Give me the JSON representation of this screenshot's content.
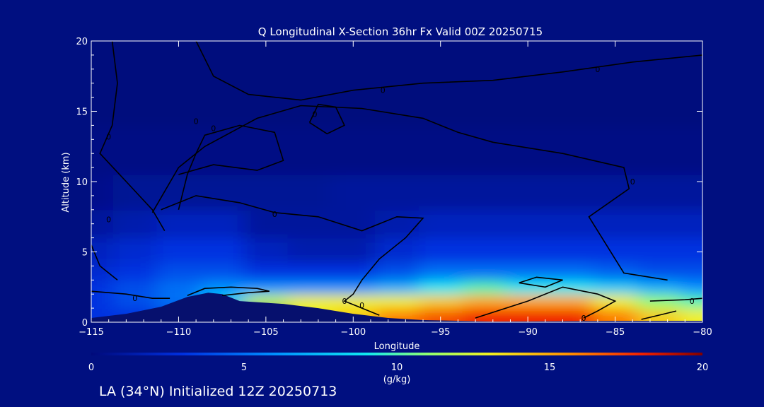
{
  "chart_data": {
    "type": "heatmap",
    "title": "Q Longitudinal X-Section 36hr  Fx Valid 00Z 20250715",
    "xlabel": "Longitude",
    "ylabel": "Altitude (km)",
    "xlim": [
      -115,
      -80
    ],
    "ylim": [
      0,
      20
    ],
    "x_ticks": [
      "−115",
      "−110",
      "−105",
      "−100",
      "−95",
      "−90",
      "−85",
      "−80"
    ],
    "x_tick_values": [
      -115,
      -110,
      -105,
      -100,
      -95,
      -90,
      -85,
      -80
    ],
    "y_ticks": [
      "0",
      "5",
      "10",
      "15",
      "20"
    ],
    "y_tick_values": [
      0,
      5,
      10,
      15,
      20
    ],
    "colorbar": {
      "label": "(g/kg)",
      "range": [
        0,
        20
      ],
      "ticks": [
        "0",
        "5",
        "10",
        "15",
        "20"
      ],
      "tick_values": [
        0,
        5,
        10,
        15,
        20
      ]
    },
    "moisture_field": {
      "description_units": "g/kg",
      "longitudes": [
        -115,
        -112.5,
        -110,
        -107.5,
        -105,
        -102.5,
        -100,
        -97.5,
        -95,
        -92.5,
        -90,
        -87.5,
        -85,
        -82.5,
        -80
      ],
      "altitudes": [
        0.5,
        1.5,
        2.5,
        3.5,
        5,
        7,
        9,
        12,
        16
      ],
      "values": [
        [
          3,
          3,
          4,
          0,
          0,
          13,
          14,
          16,
          17,
          18,
          18,
          18,
          16,
          14,
          13
        ],
        [
          3,
          4,
          5,
          8,
          12,
          13,
          13,
          13,
          14,
          15,
          15,
          15,
          13,
          11,
          10
        ],
        [
          3,
          4,
          5,
          6,
          6,
          6,
          6,
          7,
          9,
          10,
          9,
          9,
          8,
          7,
          6
        ],
        [
          2.5,
          3,
          4,
          4,
          3,
          3,
          3,
          4,
          5,
          5,
          5,
          5,
          4.5,
          4,
          4
        ],
        [
          2,
          2.5,
          3,
          3,
          2,
          1.5,
          1.5,
          2.5,
          3,
          3,
          3,
          3,
          3,
          3,
          3
        ],
        [
          1,
          1.5,
          2,
          2,
          1,
          1,
          1,
          1.5,
          2,
          2,
          2,
          2,
          2,
          2,
          2
        ],
        [
          0.5,
          0.8,
          0.8,
          0.8,
          0.8,
          0.8,
          1,
          1,
          1,
          1,
          1,
          1,
          1,
          1,
          1
        ],
        [
          0.3,
          0.3,
          0.3,
          0.3,
          0.3,
          0.3,
          0.3,
          0.3,
          0.3,
          0.3,
          0.3,
          0.3,
          0.3,
          0.3,
          0.3
        ],
        [
          0.1,
          0.1,
          0.1,
          0.1,
          0.1,
          0.1,
          0.1,
          0.1,
          0.1,
          0.1,
          0.1,
          0.1,
          0.1,
          0.1,
          0.1
        ]
      ]
    },
    "terrain": [
      {
        "lon": -115,
        "alt": 0.3
      },
      {
        "lon": -113,
        "alt": 0.6
      },
      {
        "lon": -111,
        "alt": 1.1
      },
      {
        "lon": -109.5,
        "alt": 1.8
      },
      {
        "lon": -108.3,
        "alt": 2.1
      },
      {
        "lon": -107.5,
        "alt": 2.0
      },
      {
        "lon": -106.5,
        "alt": 1.5
      },
      {
        "lon": -104,
        "alt": 1.3
      },
      {
        "lon": -102,
        "alt": 1.0
      },
      {
        "lon": -100,
        "alt": 0.6
      },
      {
        "lon": -98,
        "alt": 0.3
      },
      {
        "lon": -96,
        "alt": 0.15
      },
      {
        "lon": -92,
        "alt": 0.05
      },
      {
        "lon": -85,
        "alt": 0.1
      },
      {
        "lon": -80,
        "alt": 0.1
      }
    ],
    "contour_labels": [
      {
        "text": "0",
        "lon": -112.5,
        "alt": 1.7
      },
      {
        "text": "0",
        "lon": -114,
        "alt": 7.3
      },
      {
        "text": "0",
        "lon": -114,
        "alt": 13.2
      },
      {
        "text": "0",
        "lon": -109,
        "alt": 14.3
      },
      {
        "text": "0",
        "lon": -108,
        "alt": 13.8
      },
      {
        "text": "0",
        "lon": -104.5,
        "alt": 7.7
      },
      {
        "text": "0",
        "lon": -102.2,
        "alt": 14.8
      },
      {
        "text": "0",
        "lon": -98.3,
        "alt": 16.5
      },
      {
        "text": "0",
        "lon": -100.5,
        "alt": 1.5
      },
      {
        "text": "0",
        "lon": -99.5,
        "alt": 1.2
      },
      {
        "text": "0",
        "lon": -86.8,
        "alt": 0.3
      },
      {
        "text": "0",
        "lon": -86,
        "alt": 18
      },
      {
        "text": "0",
        "lon": -84,
        "alt": 10
      },
      {
        "text": "0",
        "lon": -80.6,
        "alt": 1.5
      }
    ]
  },
  "footer": {
    "location_text": "LA (34°N) Initialized 12Z 20250713"
  },
  "colors": {
    "background": "#000f80",
    "terrain": "#06106e",
    "contour": "#000000"
  }
}
